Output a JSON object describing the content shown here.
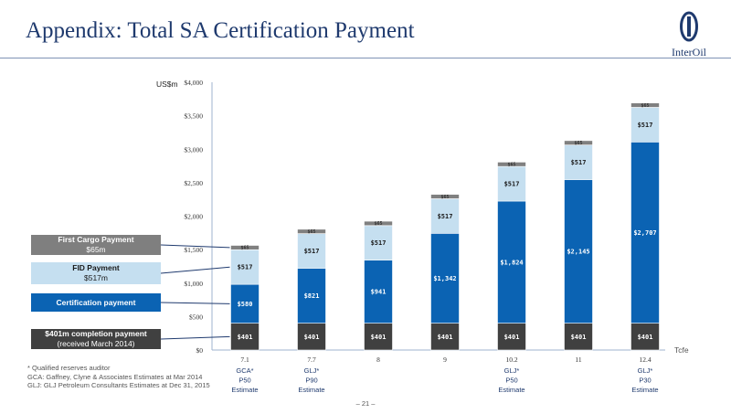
{
  "header": {
    "title": "Appendix: Total SA Certification Payment",
    "logo_text": "InterOil"
  },
  "unit_label": "US$m",
  "x_unit": "Tcfe",
  "legend": {
    "cargo_title": "First Cargo Payment",
    "cargo_value": "$65m",
    "fid_title": "FID Payment",
    "fid_value": "$517m",
    "cert_title": "Certification payment",
    "comp_title": "$401m completion payment",
    "comp_sub": "(received March 2014)"
  },
  "estimates": [
    {
      "x": "7.1",
      "lines": [
        "GCA*",
        "P50",
        "Estimate"
      ]
    },
    {
      "x": "7.7",
      "lines": [
        "GLJ*",
        "P90",
        "Estimate"
      ]
    },
    {
      "x": "10.2",
      "lines": [
        "GLJ*",
        "P50",
        "Estimate"
      ]
    },
    {
      "x": "12.4",
      "lines": [
        "GLJ*",
        "P30",
        "Estimate"
      ]
    }
  ],
  "footnotes": {
    "line1": "* Qualified reserves auditor",
    "line2": "GCA: Gaffney, Clyne & Associates Estimates at Mar 2014",
    "line3": "GLJ: GLJ Petroleum Consultants Estimates at Dec 31, 2015"
  },
  "page_number": "– 21 –",
  "chart_data": {
    "type": "bar",
    "stacked": true,
    "categories": [
      "7.1",
      "7.7",
      "8",
      "9",
      "10.2",
      "11",
      "12.4"
    ],
    "xlabel": "Tcfe",
    "ylabel": "US$m",
    "ylim": [
      0,
      4000
    ],
    "yticks": [
      "$0",
      "$500",
      "$1,000",
      "$1,500",
      "$2,000",
      "$2,500",
      "$3,000",
      "$3,500",
      "$4,000"
    ],
    "series": [
      {
        "name": "$401m completion payment",
        "color": "#404040",
        "values": [
          401,
          401,
          401,
          401,
          401,
          401,
          401
        ],
        "labels": [
          "$401",
          "$401",
          "$401",
          "$401",
          "$401",
          "$401",
          "$401"
        ]
      },
      {
        "name": "Certification payment",
        "color": "#0b63b3",
        "values": [
          580,
          821,
          941,
          1342,
          1824,
          2145,
          2707
        ],
        "labels": [
          "$580",
          "$821",
          "$941",
          "$1,342",
          "$1,824",
          "$2,145",
          "$2,707"
        ]
      },
      {
        "name": "FID Payment",
        "color": "#c5dff0",
        "values": [
          517,
          517,
          517,
          517,
          517,
          517,
          517
        ],
        "labels": [
          "$517",
          "$517",
          "$517",
          "$517",
          "$517",
          "$517",
          "$517"
        ]
      },
      {
        "name": "First Cargo Payment",
        "color": "#808080",
        "values": [
          65,
          65,
          65,
          65,
          65,
          65,
          65
        ],
        "labels": [
          "$65",
          "$65",
          "$65",
          "$65",
          "$65",
          "$65",
          "$65"
        ]
      }
    ]
  }
}
